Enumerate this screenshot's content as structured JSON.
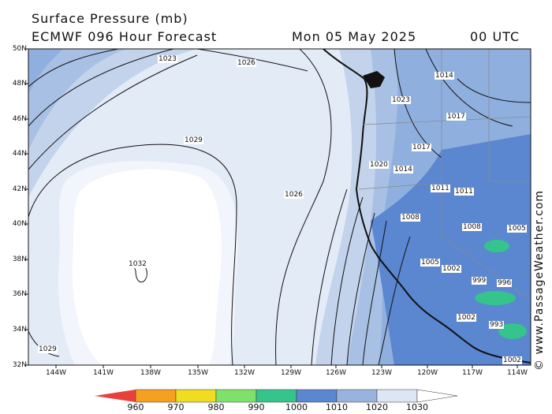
{
  "header": {
    "title": "Surface Pressure (mb)",
    "model": "ECMWF 096 Hour Forecast",
    "date": "Mon 05 May 2025",
    "time": "00 UTC"
  },
  "credit": "© www.PassageWeather.com",
  "axes": {
    "lat_labels": [
      "50N",
      "48N",
      "46N",
      "44N",
      "42N",
      "40N",
      "38N",
      "36N",
      "34N",
      "32N"
    ],
    "lon_labels": [
      "144W",
      "141W",
      "138W",
      "135W",
      "132W",
      "129W",
      "126W",
      "123W",
      "120W",
      "117W",
      "114W"
    ]
  },
  "isobar_labels": [
    "1032",
    "1029",
    "1029",
    "1026",
    "1026",
    "1023",
    "1023",
    "1020",
    "1017",
    "1014",
    "1011",
    "1008",
    "1005",
    "1002",
    "999",
    "996",
    "993",
    "1017",
    "1014",
    "1011",
    "1008",
    "1005",
    "1002",
    "1002"
  ],
  "scale": {
    "labels": [
      "960",
      "970",
      "980",
      "990",
      "1000",
      "1010",
      "1020",
      "1030"
    ],
    "colors": [
      "#e8413c",
      "#f4a020",
      "#f0dc20",
      "#7ee26a",
      "#34c48c",
      "#5b86d0",
      "#98b4de",
      "#dde6f5"
    ]
  }
}
